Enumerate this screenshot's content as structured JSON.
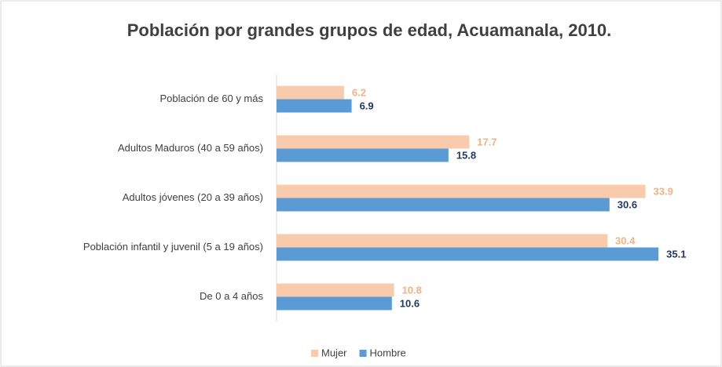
{
  "chart_data": {
    "type": "barh",
    "title": "Población por grandes grupos de edad, Acuamanala, 2010.",
    "categories": [
      "Población de 60 y más",
      "Adultos Maduros (40 a 59 años)",
      "Adultos jóvenes (20 a 39 años)",
      "Población infantil y juvenil (5 a 19 años)",
      "De 0 a 4 años"
    ],
    "series": [
      {
        "name": "Mujer",
        "color": "#f8cbad",
        "label_color": "#f4b183",
        "values": [
          6.2,
          17.7,
          33.9,
          30.4,
          10.8
        ]
      },
      {
        "name": "Hombre",
        "color": "#5b9bd5",
        "label_color": "#1f3864",
        "values": [
          6.9,
          15.8,
          30.6,
          35.1,
          10.6
        ]
      }
    ]
  }
}
